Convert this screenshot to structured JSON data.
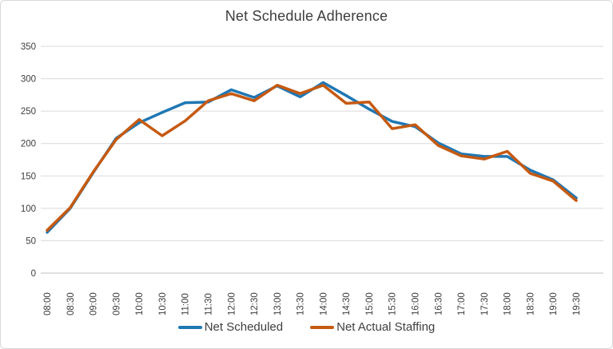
{
  "title": "Net Schedule Adherence",
  "colors": {
    "scheduled": "#1F77B4",
    "actual": "#C55A11",
    "gridline": "#D9D9D9",
    "axis_line": "#BFBFBF",
    "tick_label": "#3d3d3d",
    "title_text": "#3d3d3d",
    "frame_border": "#d7d7d7"
  },
  "legend": {
    "position": "bottom-center",
    "items": [
      {
        "label": "Net Scheduled",
        "color": "#1F77B4"
      },
      {
        "label": "Net Actual Staffing",
        "color": "#C55A11"
      }
    ]
  },
  "chart_data": {
    "type": "line",
    "title": "Net Schedule Adherence",
    "xlabel": "",
    "ylabel": "",
    "grid": true,
    "legend_position": "bottom",
    "ylim": [
      0,
      350
    ],
    "yticks": [
      0,
      50,
      100,
      150,
      200,
      250,
      300,
      350
    ],
    "categories": [
      "08:00",
      "08:30",
      "09:00",
      "09:30",
      "10:00",
      "10:30",
      "11:00",
      "11:30",
      "12:00",
      "12:30",
      "13:00",
      "13:30",
      "14:00",
      "14:30",
      "15:00",
      "15:30",
      "16:00",
      "16:30",
      "17:00",
      "17:30",
      "18:00",
      "18:30",
      "19:00",
      "19:30"
    ],
    "series": [
      {
        "name": "Net Scheduled",
        "color": "#1F77B4",
        "values": [
          63,
          100,
          155,
          208,
          232,
          248,
          263,
          264,
          283,
          271,
          289,
          272,
          294,
          274,
          253,
          234,
          226,
          201,
          184,
          180,
          180,
          159,
          144,
          116
        ]
      },
      {
        "name": "Net Actual Staffing",
        "color": "#C55A11",
        "values": [
          66,
          101,
          156,
          206,
          237,
          212,
          235,
          266,
          277,
          266,
          290,
          277,
          290,
          262,
          264,
          223,
          229,
          197,
          181,
          176,
          188,
          154,
          142,
          112
        ]
      }
    ]
  }
}
